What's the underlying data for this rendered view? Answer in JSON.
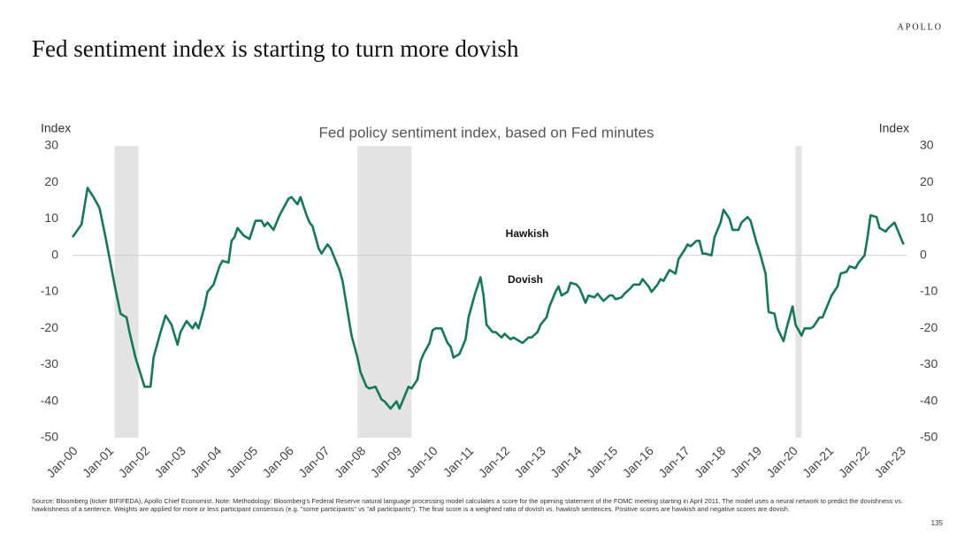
{
  "brand": "APOLLO",
  "page_number": "135",
  "source": "Source: Bloomberg (ticker BIFIFEDA), Apollo Chief Economist. Note: Methodology: Bloomberg's Federal Reserve natural language processing model calculates a score for the opening statement of the FOMC meeting starting in April 2011. The model uses a neural network to predict the dovishness vs. hawkishness of a sentence. Weights are applied for more or less participant consensus (e.g. \"some participants\" vs \"all participants\"). The final score is a weighted ratio of dovish vs. hawkish sentences. Positive scores are hawkish and negative scores are dovish.",
  "chart_data": {
    "type": "line",
    "title": "Fed sentiment index is starting to turn more dovish",
    "subtitle": "Fed policy sentiment index, based on Fed minutes",
    "y_label": "Index",
    "y2_label": "Index",
    "annotations": [
      "Hawkish",
      "Dovish"
    ],
    "color": "#127a5a",
    "reference_line": 0,
    "shaded_periods": [
      {
        "start": "2001-03",
        "end": "2001-11"
      },
      {
        "start": "2007-12",
        "end": "2009-06"
      },
      {
        "start": "2020-02",
        "end": "2020-04"
      }
    ],
    "xlim": [
      "2000-01",
      "2023-03"
    ],
    "xticks": [
      {
        "value": "2000-01",
        "label": "Jan-00"
      },
      {
        "value": "2001-01",
        "label": "Jan-01"
      },
      {
        "value": "2002-01",
        "label": "Jan-02"
      },
      {
        "value": "2003-01",
        "label": "Jan-03"
      },
      {
        "value": "2004-01",
        "label": "Jan-04"
      },
      {
        "value": "2005-01",
        "label": "Jan-05"
      },
      {
        "value": "2006-01",
        "label": "Jan-06"
      },
      {
        "value": "2007-01",
        "label": "Jan-07"
      },
      {
        "value": "2008-01",
        "label": "Jan-08"
      },
      {
        "value": "2009-01",
        "label": "Jan-09"
      },
      {
        "value": "2010-01",
        "label": "Jan-10"
      },
      {
        "value": "2011-01",
        "label": "Jan-11"
      },
      {
        "value": "2012-01",
        "label": "Jan-12"
      },
      {
        "value": "2013-01",
        "label": "Jan-13"
      },
      {
        "value": "2014-01",
        "label": "Jan-14"
      },
      {
        "value": "2015-01",
        "label": "Jan-15"
      },
      {
        "value": "2016-01",
        "label": "Jan-16"
      },
      {
        "value": "2017-01",
        "label": "Jan-17"
      },
      {
        "value": "2018-01",
        "label": "Jan-18"
      },
      {
        "value": "2019-01",
        "label": "Jan-19"
      },
      {
        "value": "2020-01",
        "label": "Jan-20"
      },
      {
        "value": "2021-01",
        "label": "Jan-21"
      },
      {
        "value": "2022-01",
        "label": "Jan-22"
      },
      {
        "value": "2023-01",
        "label": "Jan-23"
      }
    ],
    "ylim": [
      -50,
      30
    ],
    "yticks": [
      -50,
      -40,
      -30,
      -20,
      -10,
      0,
      10,
      20,
      30
    ],
    "y2lim": [
      -50,
      30
    ],
    "y2ticks": [
      -50,
      -40,
      -30,
      -20,
      -10,
      0,
      10,
      20,
      30
    ],
    "x": [
      "2000-01",
      "2000-04",
      "2000-06",
      "2000-08",
      "2000-10",
      "2000-12",
      "2001-03",
      "2001-05",
      "2001-07",
      "2001-08",
      "2001-10",
      "2002-01",
      "2002-03",
      "2002-04",
      "2002-06",
      "2002-08",
      "2002-10",
      "2002-12",
      "2003-01",
      "2003-03",
      "2003-05",
      "2003-06",
      "2003-07",
      "2003-09",
      "2003-10",
      "2003-12",
      "2004-02",
      "2004-03",
      "2004-05",
      "2004-06",
      "2004-07",
      "2004-08",
      "2004-10",
      "2004-12",
      "2005-02",
      "2005-04",
      "2005-05",
      "2005-06",
      "2005-08",
      "2005-10",
      "2006-01",
      "2006-02",
      "2006-04",
      "2006-05",
      "2006-07",
      "2006-08",
      "2006-09",
      "2006-11",
      "2006-12",
      "2007-02",
      "2007-03",
      "2007-04",
      "2007-06",
      "2007-07",
      "2007-09",
      "2007-10",
      "2007-12",
      "2008-01",
      "2008-03",
      "2008-04",
      "2008-06",
      "2008-08",
      "2008-09",
      "2008-11",
      "2009-01",
      "2009-02",
      "2009-03",
      "2009-05",
      "2009-06",
      "2009-08",
      "2009-09",
      "2009-10",
      "2009-12",
      "2010-01",
      "2010-02",
      "2010-04",
      "2010-06",
      "2010-07",
      "2010-08",
      "2010-10",
      "2010-12",
      "2011-01",
      "2011-03",
      "2011-05",
      "2011-06",
      "2011-07",
      "2011-09",
      "2011-10",
      "2011-12",
      "2012-01",
      "2012-03",
      "2012-04",
      "2012-06",
      "2012-07",
      "2012-09",
      "2012-10",
      "2012-12",
      "2013-01",
      "2013-03",
      "2013-04",
      "2013-06",
      "2013-07",
      "2013-08",
      "2013-10",
      "2013-11",
      "2014-01",
      "2014-02",
      "2014-04",
      "2014-05",
      "2014-07",
      "2014-08",
      "2014-10",
      "2014-12",
      "2015-01",
      "2015-02",
      "2015-04",
      "2015-05",
      "2015-07",
      "2015-08",
      "2015-10",
      "2015-11",
      "2016-01",
      "2016-02",
      "2016-04",
      "2016-05",
      "2016-06",
      "2016-08",
      "2016-10",
      "2016-11",
      "2017-01",
      "2017-02",
      "2017-03",
      "2017-05",
      "2017-06",
      "2017-07",
      "2017-08",
      "2017-10",
      "2017-11",
      "2018-01",
      "2018-02",
      "2018-04",
      "2018-05",
      "2018-07",
      "2018-08",
      "2018-10",
      "2018-11",
      "2019-01",
      "2019-02",
      "2019-04",
      "2019-05",
      "2019-07",
      "2019-08",
      "2019-10",
      "2019-11",
      "2020-01",
      "2020-02",
      "2020-04",
      "2020-05",
      "2020-07",
      "2020-08",
      "2020-10",
      "2020-11",
      "2021-01",
      "2021-02",
      "2021-04",
      "2021-05",
      "2021-07",
      "2021-08",
      "2021-10",
      "2021-11",
      "2022-01",
      "2022-02",
      "2022-03",
      "2022-05",
      "2022-06",
      "2022-08",
      "2022-09",
      "2022-11",
      "2023-01",
      "2023-02"
    ],
    "values": [
      5,
      8.5,
      18.5,
      16,
      13,
      5,
      -8,
      -16,
      -17,
      -21,
      -28,
      -36,
      -36,
      -28,
      -22,
      -16.5,
      -19,
      -24.5,
      -21,
      -18,
      -20,
      -18.5,
      -20,
      -14,
      -10,
      -8,
      -3,
      -1.5,
      -2,
      4,
      5,
      7.5,
      5.5,
      4.5,
      9.5,
      9.5,
      8,
      9,
      7,
      11,
      15.5,
      16,
      14,
      16,
      11,
      9,
      8,
      2,
      0.5,
      3,
      2,
      0,
      -4,
      -7,
      -17,
      -22,
      -28,
      -32,
      -36,
      -36.5,
      -36,
      -39.5,
      -40,
      -42,
      -40,
      -42,
      -40,
      -36,
      -36.5,
      -34,
      -29,
      -27,
      -24,
      -20.5,
      -20,
      -20,
      -24,
      -25,
      -28,
      -27,
      -23,
      -17,
      -11,
      -6,
      -11,
      -19,
      -21,
      -21,
      -22.5,
      -21.5,
      -23,
      -22.5,
      -23.5,
      -24,
      -22.5,
      -22.5,
      -21,
      -19,
      -17,
      -14,
      -10,
      -8.5,
      -11,
      -10,
      -7.5,
      -8,
      -9,
      -13,
      -11,
      -11.5,
      -10.5,
      -12.5,
      -11,
      -11,
      -12,
      -11.5,
      -10.5,
      -9,
      -8,
      -8,
      -6.5,
      -8.5,
      -10,
      -8,
      -6.5,
      -7,
      -4,
      -5,
      -1,
      1.5,
      3,
      2.5,
      4,
      4,
      0.5,
      0.5,
      0,
      5,
      9,
      12.5,
      10,
      7,
      7,
      9,
      10.5,
      9.5,
      3.5,
      1,
      -5,
      -15.5,
      -16,
      -20,
      -23.5,
      -20,
      -14,
      -19,
      -22,
      -20,
      -20,
      -19.5,
      -17,
      -17,
      -13,
      -11,
      -8.5,
      -5,
      -4.5,
      -3,
      -3.5,
      -2,
      0,
      5,
      11,
      10.5,
      7.5,
      6.5,
      7.5,
      9,
      5,
      3
    ]
  }
}
